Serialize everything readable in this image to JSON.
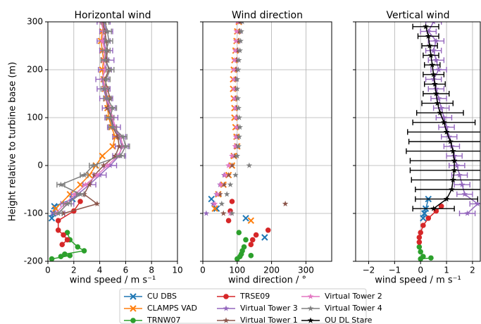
{
  "chart_data": [
    {
      "type": "line",
      "title": "Horizontal wind",
      "x_label": "wind speed / m s⁻¹",
      "y_label": "Height relative to turbine base (m)",
      "xlim": [
        0,
        10
      ],
      "xticks": [
        0,
        2,
        4,
        6,
        8,
        10
      ],
      "ylim": [
        -200,
        300
      ],
      "yticks": [
        -200,
        -100,
        0,
        100,
        200,
        300
      ],
      "grid": true,
      "lines": true,
      "series": [
        {
          "name": "CU DBS",
          "color": "#1f77b4",
          "marker": "x",
          "heights": [
            -70,
            -85,
            -100,
            -110
          ],
          "values": [
            1.9,
            0.5,
            0.4,
            0.3
          ]
        },
        {
          "name": "CLAMPS VAD",
          "color": "#ff7f0e",
          "marker": "x",
          "heights": [
            300,
            280,
            260,
            240,
            220,
            200,
            180,
            160,
            140,
            120,
            100,
            80,
            60,
            40,
            20,
            0,
            -20,
            -40,
            -60,
            -90
          ],
          "values": [
            4.3,
            4.2,
            4.1,
            4.2,
            4.3,
            4.2,
            4.3,
            4.4,
            4.5,
            4.6,
            4.7,
            4.9,
            5.2,
            5.0,
            4.2,
            3.7,
            3.2,
            2.5,
            1.7,
            0.6
          ]
        },
        {
          "name": "TRNW07",
          "color": "#2ca02c",
          "marker": "o",
          "heights": [
            -140,
            -155,
            -170,
            -178,
            -185,
            -190,
            -188,
            -195
          ],
          "values": [
            1.5,
            1.7,
            2.3,
            2.8,
            1.3,
            1.0,
            1.7,
            0.3
          ]
        },
        {
          "name": "TRSE09",
          "color": "#d62728",
          "marker": "o",
          "heights": [
            -75,
            -95,
            -115,
            -135,
            -145,
            -155,
            -165
          ],
          "values": [
            2.5,
            2.0,
            0.8,
            0.8,
            1.2,
            1.5,
            1.1
          ]
        },
        {
          "name": "Virtual Tower 3",
          "color": "#9467bd",
          "marker": "*",
          "heights": [
            300,
            280,
            260,
            240,
            220,
            200,
            180,
            160,
            140,
            120,
            100,
            80,
            60,
            40,
            20,
            0,
            -20,
            -40,
            -60,
            -80,
            -100
          ],
          "values": [
            4.3,
            4.5,
            4.3,
            4.5,
            4.6,
            4.4,
            4.2,
            4.3,
            4.5,
            4.7,
            4.9,
            5.1,
            5.5,
            5.7,
            5.5,
            4.8,
            4.0,
            3.2,
            2.3,
            1.5,
            0.8
          ],
          "errors": [
            0.5,
            0.5,
            0.5,
            0.5,
            0.5,
            0.5,
            0.5,
            0.5,
            0.5,
            0.5,
            0.5,
            0.5,
            0.5,
            0.5,
            0.5,
            0.5,
            0.5,
            0.5,
            0.5,
            0.5,
            0.5
          ]
        },
        {
          "name": "Virtual Tower 1",
          "color": "#8c564b",
          "marker": "*",
          "heights": [
            300,
            280,
            260,
            240,
            220,
            200,
            180,
            160,
            140,
            120,
            100,
            80,
            60,
            40,
            20,
            0,
            -20,
            -40,
            -60,
            -80,
            -100
          ],
          "values": [
            4.2,
            4.4,
            4.5,
            4.6,
            4.5,
            4.7,
            4.4,
            4.6,
            4.8,
            4.6,
            4.9,
            5.0,
            5.4,
            5.5,
            5.2,
            4.3,
            3.6,
            3.2,
            2.8,
            3.8,
            1.2
          ]
        },
        {
          "name": "Virtual Tower 2",
          "color": "#e377c2",
          "marker": "*",
          "heights": [
            300,
            280,
            260,
            240,
            220,
            200,
            180,
            160,
            140,
            120,
            100,
            80,
            60,
            40,
            20,
            0,
            -20,
            -40,
            -60,
            -80,
            -100
          ],
          "values": [
            4.1,
            4.3,
            4.2,
            4.4,
            4.3,
            4.4,
            4.2,
            4.5,
            4.6,
            4.8,
            5.0,
            5.2,
            5.6,
            5.8,
            5.4,
            4.6,
            3.8,
            2.9,
            2.1,
            1.3,
            0.6
          ]
        },
        {
          "name": "Virtual Tower 4",
          "color": "#7f7f7f",
          "marker": "*",
          "heights": [
            300,
            280,
            260,
            240,
            220,
            200,
            180,
            160,
            140,
            120,
            100,
            80,
            60,
            40,
            20,
            0,
            -20,
            -40,
            -60,
            -80,
            -100
          ],
          "values": [
            4.4,
            4.6,
            4.7,
            4.5,
            4.4,
            4.8,
            4.5,
            4.4,
            4.6,
            5.0,
            4.8,
            5.0,
            5.8,
            6.0,
            5.6,
            3.5,
            2.8,
            1.0,
            2.5,
            1.5,
            0.8
          ],
          "errors": [
            0.3,
            0.3,
            0.3,
            0.3,
            0.3,
            0.3,
            0.3,
            0.3,
            0.3,
            0.3,
            0.3,
            0.3,
            0.3,
            0.3,
            0.3,
            0.3,
            0.3,
            0.3,
            0.3,
            0.3,
            0.3
          ]
        }
      ]
    },
    {
      "type": "scatter",
      "title": "Wind direction",
      "x_label": "wind direction / °",
      "xlim": [
        0,
        375
      ],
      "xticks": [
        0,
        100,
        200,
        300
      ],
      "ylim": [
        -200,
        300
      ],
      "yticks": [
        -200,
        -100,
        0,
        100,
        200,
        300
      ],
      "grid": true,
      "lines": false,
      "series": [
        {
          "name": "CU DBS",
          "color": "#1f77b4",
          "marker": "x",
          "heights": [
            -70,
            -90,
            -110,
            -150
          ],
          "values": [
            25,
            40,
            125,
            180
          ]
        },
        {
          "name": "CLAMPS VAD",
          "color": "#ff7f0e",
          "marker": "x",
          "heights": [
            300,
            280,
            260,
            240,
            220,
            200,
            180,
            160,
            140,
            120,
            100,
            80,
            60,
            40,
            20,
            0,
            -20,
            -40,
            -60,
            -90,
            -115
          ],
          "values": [
            105,
            100,
            98,
            95,
            92,
            90,
            88,
            88,
            90,
            92,
            92,
            95,
            98,
            100,
            90,
            85,
            75,
            60,
            45,
            35,
            140
          ]
        },
        {
          "name": "TRNW07",
          "color": "#2ca02c",
          "marker": "o",
          "heights": [
            -140,
            -155,
            -170,
            -178,
            -185,
            -190,
            -188,
            -195
          ],
          "values": [
            105,
            125,
            120,
            115,
            112,
            108,
            140,
            100
          ]
        },
        {
          "name": "TRSE09",
          "color": "#d62728",
          "marker": "o",
          "heights": [
            -75,
            -95,
            -115,
            -135,
            -145,
            -155,
            -165
          ],
          "values": [
            85,
            80,
            75,
            190,
            155,
            145,
            140
          ]
        },
        {
          "name": "Virtual Tower 3",
          "color": "#9467bd",
          "marker": "*",
          "heights": [
            300,
            280,
            260,
            240,
            220,
            200,
            180,
            160,
            140,
            120,
            100,
            80,
            60,
            40,
            20,
            0,
            -20,
            -40,
            -60,
            -80,
            -100
          ],
          "values": [
            110,
            108,
            105,
            102,
            100,
            98,
            97,
            95,
            95,
            96,
            97,
            98,
            97,
            95,
            85,
            75,
            62,
            50,
            40,
            30,
            10
          ]
        },
        {
          "name": "Virtual Tower 1",
          "color": "#8c564b",
          "marker": "*",
          "heights": [
            300,
            280,
            260,
            240,
            220,
            200,
            180,
            160,
            140,
            120,
            100,
            80,
            60,
            40,
            20,
            0,
            -20,
            -40,
            -60,
            -80,
            -100
          ],
          "values": [
            108,
            106,
            104,
            100,
            98,
            96,
            95,
            95,
            96,
            98,
            100,
            102,
            100,
            98,
            92,
            85,
            75,
            62,
            50,
            240,
            60
          ]
        },
        {
          "name": "Virtual Tower 2",
          "color": "#e377c2",
          "marker": "*",
          "heights": [
            300,
            280,
            260,
            240,
            220,
            200,
            180,
            160,
            140,
            120,
            100,
            80,
            60,
            40,
            20,
            0,
            -20,
            -40,
            -60,
            -80,
            -100
          ],
          "values": [
            100,
            98,
            96,
            94,
            92,
            90,
            90,
            90,
            92,
            94,
            96,
            98,
            96,
            94,
            85,
            75,
            65,
            52,
            42,
            35,
            80
          ]
        },
        {
          "name": "Virtual Tower 4",
          "color": "#7f7f7f",
          "marker": "*",
          "heights": [
            300,
            280,
            260,
            240,
            220,
            200,
            180,
            160,
            140,
            120,
            100,
            80,
            60,
            40,
            20,
            0,
            -20,
            -40,
            -60,
            -80,
            -100
          ],
          "values": [
            115,
            112,
            110,
            108,
            105,
            103,
            100,
            100,
            102,
            104,
            106,
            108,
            106,
            104,
            100,
            135,
            95,
            80,
            70,
            55,
            85
          ]
        }
      ]
    },
    {
      "type": "line",
      "title": "Vertical wind",
      "x_label": "wind speed / m s⁻¹",
      "xlim": [
        -2.5,
        2.3
      ],
      "xticks": [
        {
          "value": -2,
          "label": "−2"
        },
        {
          "value": -1,
          "label": "−1"
        },
        0,
        1,
        2
      ],
      "ylim": [
        -200,
        300
      ],
      "yticks": [
        -200,
        -100,
        0,
        100,
        200,
        300
      ],
      "grid": true,
      "lines": true,
      "series": [
        {
          "name": "CU DBS",
          "color": "#1f77b4",
          "marker": "x",
          "heights": [
            -70,
            -90,
            -100,
            -110
          ],
          "values": [
            0.3,
            0.2,
            0.15,
            0.1
          ]
        },
        {
          "name": "TRNW07",
          "color": "#2ca02c",
          "marker": "o",
          "heights": [
            -170,
            -180,
            -190,
            -195,
            -193
          ],
          "values": [
            -0.05,
            0.0,
            0.1,
            0.0,
            0.4
          ]
        },
        {
          "name": "TRSE09",
          "color": "#d62728",
          "marker": "o",
          "heights": [
            -85,
            -95,
            -110,
            -125,
            -140,
            -150,
            -160
          ],
          "values": [
            0.8,
            0.6,
            0.3,
            0.1,
            0.0,
            -0.05,
            -0.05
          ]
        },
        {
          "name": "Virtual Tower 3",
          "color": "#9467bd",
          "marker": "*",
          "heights": [
            300,
            280,
            260,
            240,
            220,
            200,
            180,
            160,
            140,
            120,
            100,
            80,
            60,
            40,
            20,
            0,
            -20,
            -40,
            -60,
            -80,
            -100
          ],
          "values": [
            0.5,
            0.3,
            0.6,
            0.5,
            0.6,
            0.7,
            0.5,
            0.6,
            0.7,
            0.8,
            0.9,
            1.0,
            1.1,
            1.2,
            1.3,
            1.4,
            1.5,
            1.6,
            1.7,
            2.2,
            1.8
          ],
          "errors": [
            0.3,
            0.3,
            0.3,
            0.3,
            0.3,
            0.3,
            0.3,
            0.3,
            0.3,
            0.3,
            0.3,
            0.3,
            0.3,
            0.3,
            0.3,
            0.3,
            0.3,
            0.3,
            0.3,
            0.3,
            0.3
          ]
        },
        {
          "name": "OU DL Stare",
          "color": "#000000",
          "marker": "*",
          "heights": [
            290,
            270,
            250,
            230,
            210,
            190,
            170,
            150,
            130,
            110,
            90,
            70,
            50,
            30,
            10,
            -10,
            -30,
            -50,
            -70,
            -90
          ],
          "values": [
            0.2,
            0.3,
            0.35,
            0.4,
            0.45,
            0.5,
            0.55,
            0.6,
            0.65,
            0.75,
            0.9,
            1.0,
            1.15,
            1.25,
            1.3,
            1.3,
            1.25,
            1.2,
            1.0,
            0.5
          ],
          "errors": [
            0.5,
            0.4,
            0.3,
            0.3,
            0.3,
            0.4,
            0.4,
            0.5,
            0.6,
            0.9,
            1.2,
            1.5,
            1.6,
            1.8,
            1.7,
            1.7,
            1.6,
            1.4,
            1.2,
            0.8
          ]
        }
      ]
    }
  ]
}
